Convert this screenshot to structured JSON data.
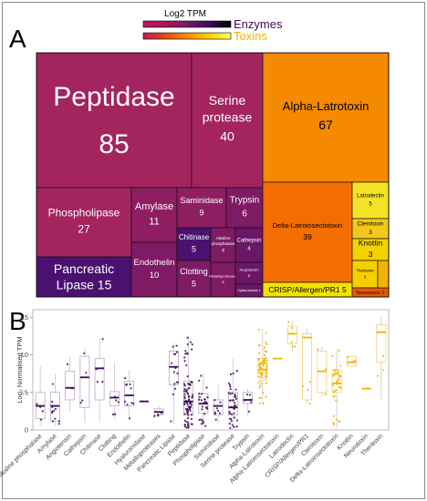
{
  "panels": {
    "a": "A",
    "b": "B"
  },
  "legend": {
    "title": "Log2 TPM",
    "enzymes_label": "Enzymes",
    "toxins_label": "Toxins",
    "enzymes_gradient": [
      "#c2185b",
      "#ad1457",
      "#7b1a66",
      "#3f0a59",
      "#000000"
    ],
    "toxins_gradient": [
      "#c2185b",
      "#e64a19",
      "#ff8c00",
      "#ffd000",
      "#ffff66"
    ]
  },
  "colors": {
    "enzymes": "#3f0a59",
    "toxins": "#f2b400",
    "enzyme_text": "#3f0a59",
    "toxin_text": "#f2b400"
  },
  "chart_data": [
    {
      "type": "treemap",
      "nodes": [
        {
          "name": "Peptidase",
          "value": 85,
          "group": "Enzymes",
          "color": "#a3245e"
        },
        {
          "name": "Serine protease",
          "value": 40,
          "group": "Enzymes",
          "color": "#a3245e"
        },
        {
          "name": "Phospholipase",
          "value": 27,
          "group": "Enzymes",
          "color": "#a3245e"
        },
        {
          "name": "Pancreatic Lipase",
          "value": 15,
          "group": "Enzymes",
          "color": "#4a1170"
        },
        {
          "name": "Amylase",
          "value": 11,
          "group": "Enzymes",
          "color": "#8f1d61"
        },
        {
          "name": "Endothelin",
          "value": 10,
          "group": "Enzymes",
          "color": "#7f1a64"
        },
        {
          "name": "Saminidase",
          "value": 9,
          "group": "Enzymes",
          "color": "#8f1d61"
        },
        {
          "name": "Trypsin",
          "value": 6,
          "group": "Enzymes",
          "color": "#7f1a64"
        },
        {
          "name": "Chitinase",
          "value": 5,
          "group": "Enzymes",
          "color": "#4a1170"
        },
        {
          "name": "Clotting",
          "value": 5,
          "group": "Enzymes",
          "color": "#7f1a64"
        },
        {
          "name": "Alkaline phosphatase",
          "value": 4,
          "group": "Enzymes",
          "color": "#7f1a64"
        },
        {
          "name": "Cathepsin",
          "value": 4,
          "group": "Enzymes",
          "color": "#6a1766"
        },
        {
          "name": "Metalloproteases",
          "value": 4,
          "group": "Enzymes",
          "color": "#7f1a64"
        },
        {
          "name": "Angiotensin",
          "value": 2,
          "group": "Enzymes",
          "color": "#6a1766"
        },
        {
          "name": "Hyaluronidase",
          "value": 1,
          "group": "Enzymes",
          "color": "#6a1766"
        },
        {
          "name": "Alpha-Latrotoxin",
          "value": 67,
          "group": "Toxins",
          "color": "#f58a00"
        },
        {
          "name": "Delta-Latroinsectotoxin",
          "value": 39,
          "group": "Toxins",
          "color": "#f26e00"
        },
        {
          "name": "CRISP/Allergen/PR1",
          "value": 5,
          "group": "Toxins",
          "color": "#f2e200"
        },
        {
          "name": "Latrodectin",
          "value": 5,
          "group": "Toxins",
          "color": "#f5e32a"
        },
        {
          "name": "Ctenitoxin",
          "value": 3,
          "group": "Toxins",
          "color": "#f2c81e"
        },
        {
          "name": "Knottin",
          "value": 3,
          "group": "Toxins",
          "color": "#f2d200"
        },
        {
          "name": "Theritoxin",
          "value": 3,
          "group": "Toxins",
          "color": "#f5d000"
        },
        {
          "name": "Neurotoxin",
          "value": 1,
          "group": "Toxins",
          "color": "#e85a00"
        }
      ]
    },
    {
      "type": "box",
      "ylabel": "Log₂ Normalised TPM",
      "ylim": [
        0,
        16
      ],
      "yticks": [
        0,
        5,
        10,
        15
      ],
      "categories": [
        "Alkaline phosphatase",
        "Amylase",
        "Angiotensin",
        "Cathepsin",
        "Chitinase",
        "Clotting",
        "Endothelin",
        "Hyaluronidase",
        "Metalloproteases",
        "Pancreatic Lipase",
        "Peptidase",
        "Phospholipase",
        "Saminidase",
        "Serine protease",
        "Trypsin",
        "Alpha-Latrotoxin",
        "Alpha-Latroinsectotoxin",
        "Latrodectin",
        "CRISP/Allergen/PR1",
        "Ctenitoxin",
        "Delta-Latroinsectotoxin",
        "Knottin",
        "Neurotoxin",
        "Theritoxin"
      ],
      "groups": [
        "Enzymes",
        "Enzymes",
        "Enzymes",
        "Enzymes",
        "Enzymes",
        "Enzymes",
        "Enzymes",
        "Enzymes",
        "Enzymes",
        "Enzymes",
        "Enzymes",
        "Enzymes",
        "Enzymes",
        "Enzymes",
        "Enzymes",
        "Toxins",
        "Toxins",
        "Toxins",
        "Toxins",
        "Toxins",
        "Toxins",
        "Toxins",
        "Toxins",
        "Toxins"
      ],
      "boxes": [
        {
          "q1": 1.5,
          "median": 3.2,
          "q3": 5.0,
          "min": 0.5,
          "max": 8.5,
          "n": 4
        },
        {
          "q1": 1.2,
          "median": 3.2,
          "q3": 5.0,
          "min": 0.5,
          "max": 7.5,
          "n": 11
        },
        {
          "q1": 4.0,
          "median": 5.6,
          "q3": 7.8,
          "min": 2.5,
          "max": 9.8,
          "n": 2
        },
        {
          "q1": 3.0,
          "median": 7.0,
          "q3": 9.8,
          "min": 1.0,
          "max": 11.0,
          "n": 4
        },
        {
          "q1": 4.0,
          "median": 8.2,
          "q3": 9.5,
          "min": 1.0,
          "max": 12.3,
          "n": 5
        },
        {
          "q1": 3.2,
          "median": 4.3,
          "q3": 5.1,
          "min": 1.5,
          "max": 9.0,
          "n": 5
        },
        {
          "q1": 3.2,
          "median": 4.6,
          "q3": 6.5,
          "min": 1.5,
          "max": 8.0,
          "n": 10
        },
        {
          "q1": 3.8,
          "median": 3.8,
          "q3": 3.8,
          "min": 3.8,
          "max": 3.8,
          "n": 1
        },
        {
          "q1": 2.0,
          "median": 2.4,
          "q3": 2.8,
          "min": 1.8,
          "max": 3.2,
          "n": 4
        },
        {
          "q1": 6.0,
          "median": 8.4,
          "q3": 10.5,
          "min": 0.8,
          "max": 11.6,
          "n": 15
        },
        {
          "q1": 2.0,
          "median": 3.8,
          "q3": 6.5,
          "min": 0.0,
          "max": 12.6,
          "n": 85
        },
        {
          "q1": 2.2,
          "median": 3.5,
          "q3": 4.8,
          "min": 0.5,
          "max": 7.5,
          "n": 27
        },
        {
          "q1": 2.0,
          "median": 3.2,
          "q3": 4.0,
          "min": 1.0,
          "max": 6.0,
          "n": 9
        },
        {
          "q1": 2.0,
          "median": 3.0,
          "q3": 5.0,
          "min": 0.0,
          "max": 9.5,
          "n": 40
        },
        {
          "q1": 3.5,
          "median": 4.0,
          "q3": 5.0,
          "min": 2.0,
          "max": 5.5,
          "n": 6
        },
        {
          "q1": 7.0,
          "median": 8.0,
          "q3": 9.5,
          "min": 3.5,
          "max": 13.5,
          "n": 67
        },
        {
          "q1": 9.5,
          "median": 9.5,
          "q3": 9.5,
          "min": 9.5,
          "max": 9.5,
          "n": 1
        },
        {
          "q1": 11.5,
          "median": 12.8,
          "q3": 13.8,
          "min": 10.5,
          "max": 14.5,
          "n": 5
        },
        {
          "q1": 4.0,
          "median": 12.3,
          "q3": 12.8,
          "min": 3.5,
          "max": 13.5,
          "n": 5
        },
        {
          "q1": 5.0,
          "median": 7.8,
          "q3": 10.5,
          "min": 4.5,
          "max": 11.0,
          "n": 3
        },
        {
          "q1": 5.0,
          "median": 6.2,
          "q3": 8.0,
          "min": 0.2,
          "max": 10.8,
          "n": 39
        },
        {
          "q1": 8.5,
          "median": 9.0,
          "q3": 9.8,
          "min": 8.5,
          "max": 9.8,
          "n": 3
        },
        {
          "q1": 5.5,
          "median": 5.5,
          "q3": 5.5,
          "min": 5.5,
          "max": 5.5,
          "n": 1
        },
        {
          "q1": 9.0,
          "median": 13.0,
          "q3": 14.0,
          "min": 4.0,
          "max": 15.0,
          "n": 3
        }
      ]
    }
  ]
}
